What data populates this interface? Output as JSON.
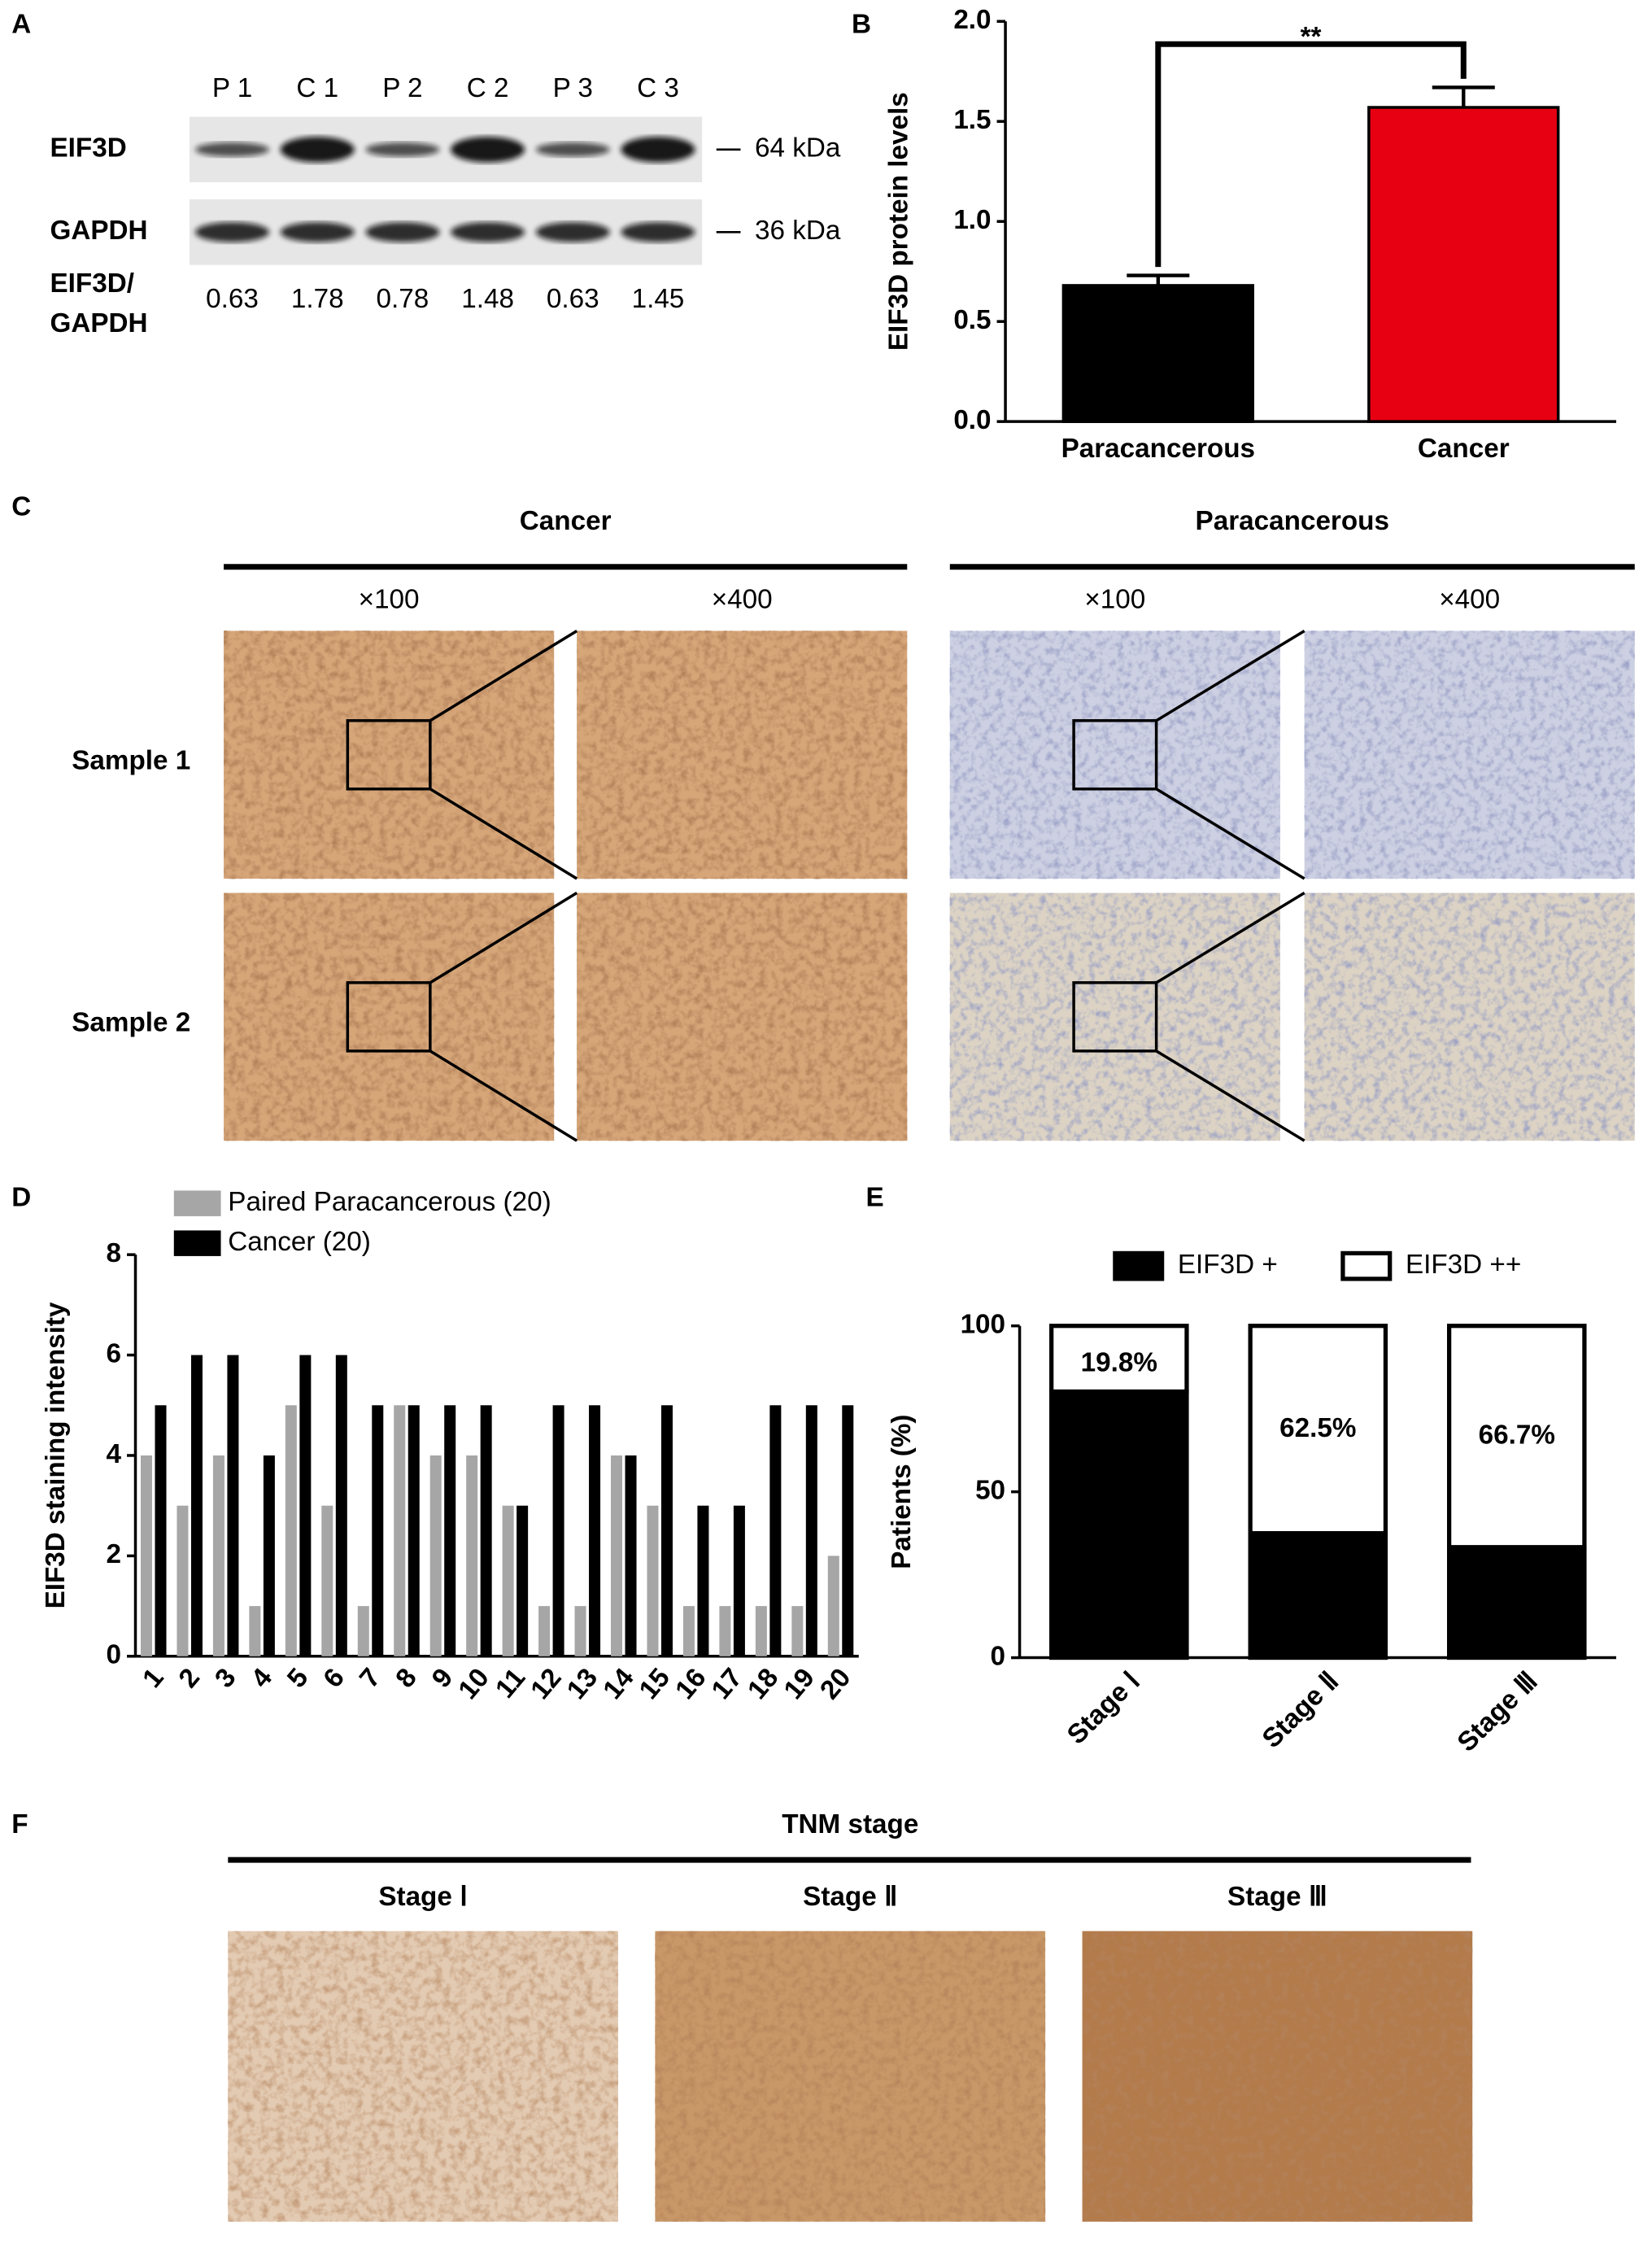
{
  "panel_labels": [
    "A",
    "B",
    "C",
    "D",
    "E",
    "F"
  ],
  "western_blot": {
    "lanes": [
      "P 1",
      "C 1",
      "P 2",
      "C 2",
      "P 3",
      "C 3"
    ],
    "rows": [
      {
        "name": "EIF3D",
        "marker": "64 kDa"
      },
      {
        "name": "GAPDH",
        "marker": "36 kDa"
      }
    ],
    "ratio_label": [
      "EIF3D/",
      "GAPDH"
    ],
    "ratios": [
      0.63,
      1.78,
      0.78,
      1.48,
      0.63,
      1.45
    ]
  },
  "chart_data": [
    {
      "type": "bar",
      "y_label": "EIF3D protein levels",
      "categories": [
        "Paracancerous",
        "Cancer"
      ],
      "values": [
        0.68,
        1.57
      ],
      "errors": [
        0.05,
        0.1
      ],
      "colors": [
        "#000000",
        "#e60012"
      ],
      "ylim": [
        0,
        2.0
      ],
      "yticks": [
        {
          "value": 0,
          "label": "0.0"
        },
        {
          "value": 0.5,
          "label": "0.5"
        },
        {
          "value": 1,
          "label": "1.0"
        },
        {
          "value": 1.5,
          "label": "1.5"
        },
        {
          "value": 2,
          "label": "2.0"
        }
      ],
      "annotation": "**",
      "grid": false
    },
    {
      "type": "grouped_bar",
      "y_label": "EIF3D staining intensity",
      "categories": [
        "1",
        "2",
        "3",
        "4",
        "5",
        "6",
        "7",
        "8",
        "9",
        "10",
        "11",
        "12",
        "13",
        "14",
        "15",
        "16",
        "17",
        "18",
        "19",
        "20"
      ],
      "series": [
        {
          "name": "Paired Paracancerous (20)",
          "color": "#a6a6a6",
          "values": [
            4,
            3,
            4,
            1,
            5,
            3,
            1,
            5,
            4,
            4,
            3,
            1,
            1,
            4,
            3,
            1,
            1,
            1,
            1,
            2
          ]
        },
        {
          "name": "Cancer (20)",
          "color": "#000000",
          "values": [
            5,
            6,
            6,
            4,
            6,
            6,
            5,
            5,
            5,
            5,
            3,
            5,
            5,
            4,
            5,
            3,
            3,
            5,
            5,
            5
          ]
        }
      ],
      "ylim": [
        0,
        8
      ],
      "yticks": [
        0,
        2,
        4,
        6,
        8
      ],
      "grid": false
    },
    {
      "type": "stacked_bar",
      "y_label": "Patients (%)",
      "categories": [
        "Stage Ⅰ",
        "Stage Ⅱ",
        "Stage Ⅲ"
      ],
      "series": [
        {
          "name": "EIF3D +",
          "color": "#000000",
          "values": [
            80.2,
            37.5,
            33.3
          ]
        },
        {
          "name": "EIF3D ++",
          "color": "#ffffff",
          "values": [
            19.8,
            62.5,
            66.7
          ],
          "value_labels": [
            "19.8%",
            "62.5%",
            "66.7%"
          ]
        }
      ],
      "ylim": [
        0,
        100
      ],
      "yticks": [
        0,
        50,
        100
      ],
      "grid": false
    }
  ],
  "ihc": {
    "groups": [
      {
        "title": "Cancer",
        "magnifications": [
          "×100",
          "×400"
        ]
      },
      {
        "title": "Paracancerous",
        "magnifications": [
          "×100",
          "×400"
        ]
      }
    ],
    "samples": [
      "Sample 1",
      "Sample 2"
    ]
  },
  "tnm": {
    "title": "TNM stage",
    "stages": [
      "Stage Ⅰ",
      "Stage Ⅱ",
      "Stage Ⅲ"
    ]
  }
}
